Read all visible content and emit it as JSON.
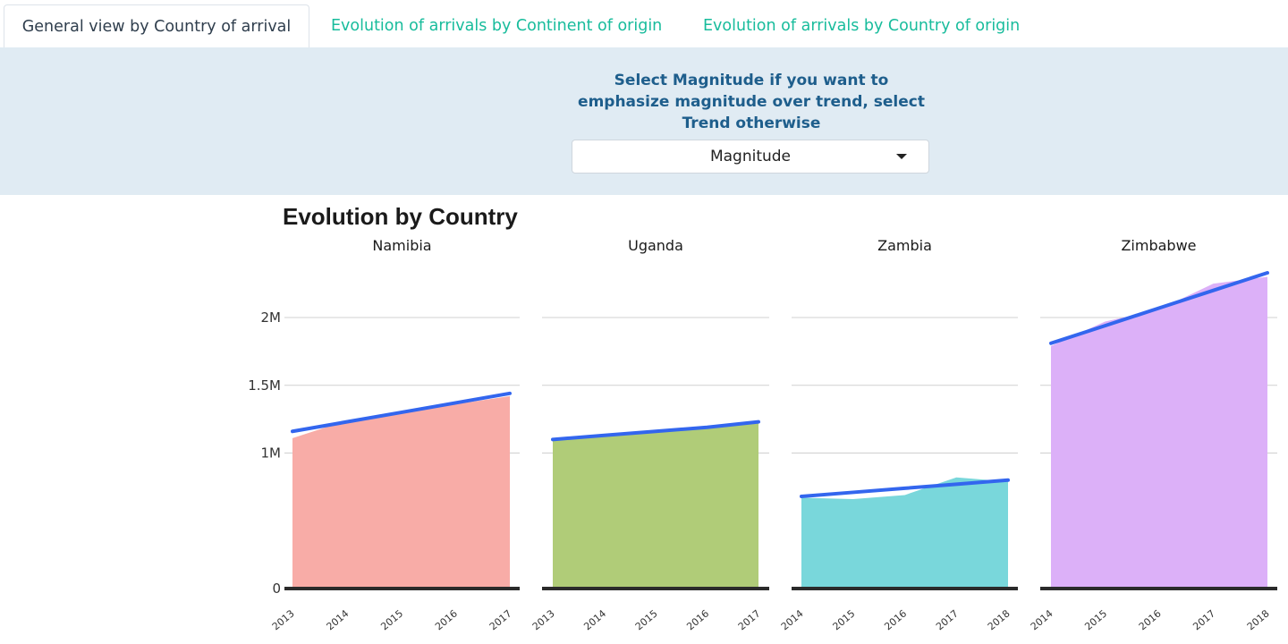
{
  "tabs": [
    {
      "label": "General view by Country of arrival",
      "active": true
    },
    {
      "label": "Evolution of arrivals by Continent of origin",
      "active": false
    },
    {
      "label": "Evolution of arrivals by Country of origin",
      "active": false
    }
  ],
  "control": {
    "label": "Select Magnitude if you want to emphasize magnitude over trend, select Trend otherwise",
    "selected": "Magnitude"
  },
  "chart_data": {
    "type": "area",
    "title": "Evolution by Country",
    "ylim": [
      0,
      2000000
    ],
    "yticks": [
      {
        "value": 0,
        "label": "0"
      },
      {
        "value": 1000000,
        "label": "1M"
      },
      {
        "value": 1500000,
        "label": "1.5M"
      },
      {
        "value": 2000000,
        "label": "2M"
      }
    ],
    "grid": true,
    "trend_color": "#3366ee",
    "facets": [
      {
        "name": "Namibia",
        "color": "#f8aca7",
        "x": [
          "2013",
          "2014",
          "2015",
          "2016",
          "2017"
        ],
        "values": [
          1110000,
          1240000,
          1300000,
          1360000,
          1420000
        ],
        "trend": [
          1160000,
          1230000,
          1300000,
          1370000,
          1440000
        ]
      },
      {
        "name": "Uganda",
        "color": "#b0cc78",
        "x": [
          "2013",
          "2014",
          "2015",
          "2016",
          "2017"
        ],
        "values": [
          1100000,
          1130000,
          1150000,
          1190000,
          1230000
        ],
        "trend": [
          1100000,
          1130000,
          1160000,
          1190000,
          1230000
        ]
      },
      {
        "name": "Zambia",
        "color": "#79d7db",
        "x": [
          "2014",
          "2015",
          "2016",
          "2017",
          "2018"
        ],
        "values": [
          670000,
          660000,
          690000,
          820000,
          790000
        ],
        "trend": [
          680000,
          710000,
          740000,
          770000,
          800000
        ]
      },
      {
        "name": "Zimbabwe",
        "color": "#dcb0f8",
        "x": [
          "2014",
          "2015",
          "2016",
          "2017",
          "2018"
        ],
        "values": [
          1790000,
          1970000,
          2060000,
          2250000,
          2300000
        ],
        "trend": [
          1810000,
          1940000,
          2070000,
          2200000,
          2330000
        ]
      }
    ]
  }
}
